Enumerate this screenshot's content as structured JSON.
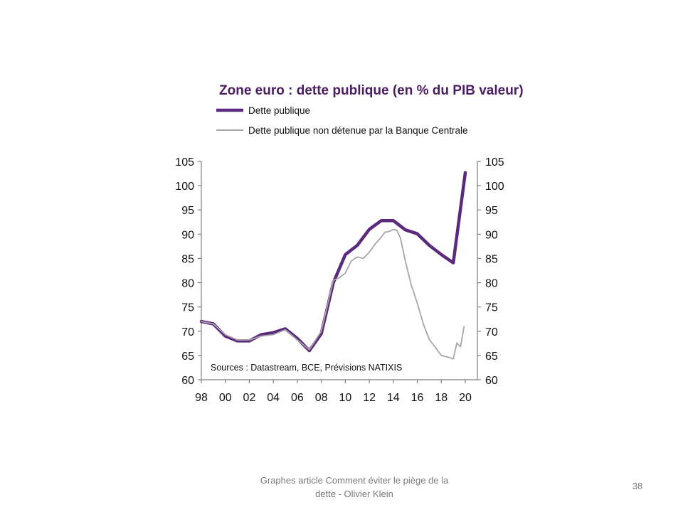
{
  "slide": {
    "footer_line1": "Graphes article Comment  éviter le piège de la",
    "footer_line2": "dette - Olivier Klein",
    "page_number": "38"
  },
  "colors": {
    "series1": "#5b2a7e",
    "series2": "#a6a6a6",
    "title": "#4b1d63",
    "axis": "#7f7f7f"
  },
  "chart_data": {
    "type": "line",
    "title": "Zone euro : dette publique (en % du PIB valeur)",
    "source": "Sources : Datastream, BCE, Prévisions NATIXIS",
    "xlabel": "",
    "ylabel": "",
    "xlim": [
      1998,
      2020
    ],
    "ylim": [
      60,
      105
    ],
    "y_ticks": [
      105,
      100,
      95,
      90,
      85,
      80,
      75,
      70,
      65,
      60
    ],
    "x_ticks": [
      {
        "x": 1998,
        "label": "98"
      },
      {
        "x": 2000,
        "label": "00"
      },
      {
        "x": 2002,
        "label": "02"
      },
      {
        "x": 2004,
        "label": "04"
      },
      {
        "x": 2006,
        "label": "06"
      },
      {
        "x": 2008,
        "label": "08"
      },
      {
        "x": 2010,
        "label": "10"
      },
      {
        "x": 2012,
        "label": "12"
      },
      {
        "x": 2014,
        "label": "14"
      },
      {
        "x": 2016,
        "label": "16"
      },
      {
        "x": 2018,
        "label": "18"
      },
      {
        "x": 2020,
        "label": "20"
      }
    ],
    "right_axis_mirrors_left": true,
    "grid": false,
    "legend_position": "top-left",
    "series": [
      {
        "name": "Dette publique",
        "points": [
          [
            1998,
            72.0
          ],
          [
            1999,
            71.5
          ],
          [
            2000,
            69.0
          ],
          [
            2001,
            68.0
          ],
          [
            2002,
            68.0
          ],
          [
            2003,
            69.3
          ],
          [
            2004,
            69.7
          ],
          [
            2005,
            70.5
          ],
          [
            2006,
            68.5
          ],
          [
            2007,
            66.0
          ],
          [
            2008,
            69.5
          ],
          [
            2009,
            80.0
          ],
          [
            2010,
            85.8
          ],
          [
            2011,
            87.7
          ],
          [
            2012,
            91.0
          ],
          [
            2013,
            92.8
          ],
          [
            2014,
            92.8
          ],
          [
            2015,
            90.9
          ],
          [
            2016,
            90.1
          ],
          [
            2017,
            87.7
          ],
          [
            2018,
            85.8
          ],
          [
            2019,
            84.1
          ],
          [
            2020,
            102.7
          ]
        ]
      },
      {
        "name": "Dette publique non détenue par la Banque Centrale",
        "points": [
          [
            1998,
            72.0
          ],
          [
            1999,
            71.5
          ],
          [
            2000,
            69.3
          ],
          [
            2001,
            68.2
          ],
          [
            2002,
            68.2
          ],
          [
            2003,
            69.0
          ],
          [
            2004,
            69.3
          ],
          [
            2005,
            70.3
          ],
          [
            2006,
            68.2
          ],
          [
            2007,
            66.2
          ],
          [
            2008,
            70.0
          ],
          [
            2009,
            80.5
          ],
          [
            2009.5,
            81.0
          ],
          [
            2010,
            82.0
          ],
          [
            2010.5,
            84.5
          ],
          [
            2011,
            85.3
          ],
          [
            2011.5,
            85.0
          ],
          [
            2012,
            86.3
          ],
          [
            2012.5,
            88.0
          ],
          [
            2013,
            89.4
          ],
          [
            2013.3,
            90.4
          ],
          [
            2013.7,
            90.6
          ],
          [
            2014,
            91.0
          ],
          [
            2014.3,
            90.8
          ],
          [
            2014.6,
            89.2
          ],
          [
            2015,
            84.5
          ],
          [
            2015.5,
            79.5
          ],
          [
            2016,
            75.8
          ],
          [
            2016.5,
            71.5
          ],
          [
            2017,
            68.3
          ],
          [
            2017.5,
            66.7
          ],
          [
            2018,
            65.0
          ],
          [
            2018.5,
            64.7
          ],
          [
            2019,
            64.3
          ],
          [
            2019.3,
            67.6
          ],
          [
            2019.6,
            66.8
          ],
          [
            2019.9,
            71.0
          ]
        ]
      }
    ]
  }
}
